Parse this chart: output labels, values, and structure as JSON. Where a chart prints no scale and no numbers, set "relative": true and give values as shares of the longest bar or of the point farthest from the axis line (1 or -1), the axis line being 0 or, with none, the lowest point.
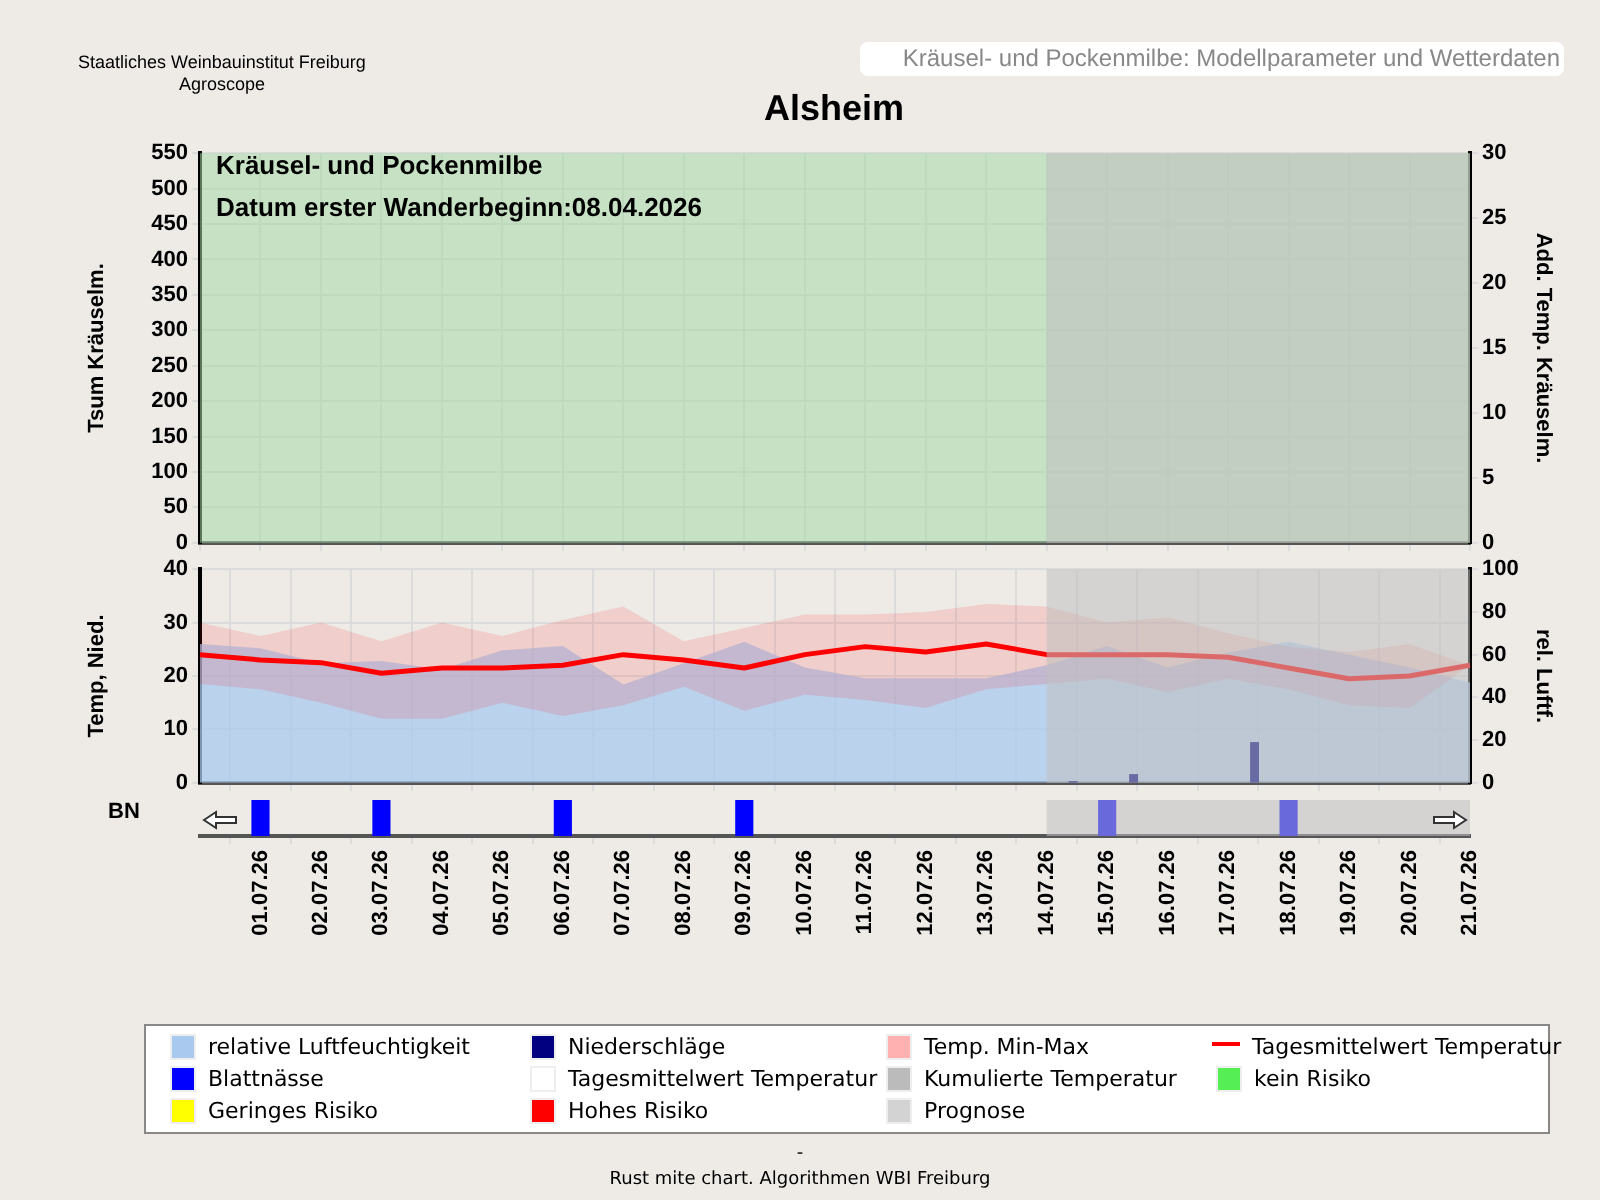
{
  "chart_data": [
    {
      "type": "line",
      "title": "Alsheim",
      "subtitle": "Kräusel- und Pockenmilbe: Modellparameter und Wetterdaten",
      "annotations": [
        "Kräusel- und Pockenmilbe",
        "Datum  erster Wanderbeginn:08.04.2026",
        "Staatliches Weinbauinstitut Freiburg",
        "Agroscope"
      ],
      "categories": [
        null,
        "01.07.26",
        "02.07.26",
        "03.07.26",
        "04.07.26",
        "05.07.26",
        "06.07.26",
        "07.07.26",
        "08.07.26",
        "09.07.26",
        "10.07.26",
        "11.07.26",
        "12.07.26",
        "13.07.26",
        "14.07.26",
        "15.07.26",
        "16.07.26",
        "17.07.26",
        "18.07.26",
        "19.07.26",
        "20.07.26",
        "21.07.26"
      ],
      "ylabel": "Tsum Kräuselm.",
      "y2label": "Add. Temp. Kräuselm.",
      "ylim": [
        0,
        550
      ],
      "yticks": [
        0,
        50,
        100,
        150,
        200,
        250,
        300,
        350,
        400,
        450,
        500,
        550
      ],
      "y2lim": [
        0,
        30
      ],
      "y2ticks": [
        0,
        5,
        10,
        15,
        20,
        25,
        30
      ],
      "bands": [
        {
          "axis": "y",
          "from": 0,
          "to": 550,
          "color": "#a6d8a6"
        },
        {
          "axis": "x",
          "from": "14.07.26",
          "to": "21.07.26",
          "color": "#c0c0c0"
        }
      ],
      "grid": true,
      "tick_labels": "y"
    },
    {
      "type": "line",
      "categories": [
        null,
        "01.07.26",
        "02.07.26",
        "03.07.26",
        "04.07.26",
        "05.07.26",
        "06.07.26",
        "07.07.26",
        "08.07.26",
        "09.07.26",
        "10.07.26",
        "11.07.26",
        "12.07.26",
        "13.07.26",
        "14.07.26",
        "15.07.26",
        "16.07.26",
        "17.07.26",
        "18.07.26",
        "19.07.26",
        "20.07.26",
        "21.07.26"
      ],
      "ylabel": "Temp, Nied.",
      "y2label": "rel. Luftf.",
      "ylim": [
        0,
        40
      ],
      "yticks": [
        0,
        10,
        20,
        30,
        40
      ],
      "y2lim": [
        0,
        100
      ],
      "y2ticks": [
        0,
        20,
        40,
        60,
        80,
        100
      ],
      "series": [
        {
          "name": "relative Luftfeuchtigkeit",
          "type": "area",
          "axis": "y2",
          "color": "#a9c9ef",
          "values": [
            65,
            63,
            56,
            57,
            53,
            62,
            64,
            46,
            56,
            66,
            54,
            49,
            49,
            49,
            55,
            64,
            54,
            61,
            66,
            60,
            54,
            47
          ]
        },
        {
          "name": "Niederschläge",
          "type": "bar",
          "color": "#000080",
          "values": [
            null,
            null,
            null,
            null,
            null,
            null,
            null,
            null,
            null,
            null,
            null,
            null,
            null,
            null,
            0.2,
            1.5,
            null,
            7.5,
            null,
            null,
            null,
            null
          ]
        },
        {
          "name": "Temp. Min-Max",
          "type": "area",
          "color": "#ffb0b0",
          "values": [
            null,
            null,
            null,
            null,
            null,
            null,
            null,
            null,
            null,
            null,
            null,
            null,
            null,
            null,
            null,
            null,
            null,
            null,
            null,
            null,
            null,
            null
          ]
        },
        {
          "name": "Tagesmittelwert Temperatur",
          "type": "line",
          "color": "#ff0000",
          "values": [
            24,
            23,
            22.5,
            20.5,
            21.5,
            21.5,
            22,
            24,
            23,
            21.5,
            24,
            25.5,
            24.5,
            26,
            24,
            24,
            24,
            23.5,
            21.5,
            19.5,
            20,
            22
          ],
          "lower": [
            18.5,
            17.5,
            15,
            12,
            12,
            15,
            12.5,
            14.5,
            18,
            13.5,
            16.5,
            15.5,
            14,
            17.5,
            18.5,
            19.5,
            17,
            19.5,
            17.5,
            14.5,
            14,
            22
          ],
          "upper": [
            30,
            27.5,
            30,
            26.5,
            30,
            27.5,
            30.5,
            33,
            26.5,
            29,
            31.5,
            31.5,
            32,
            33.5,
            33,
            30,
            31,
            28,
            25.5,
            24.5,
            26,
            22
          ]
        },
        {
          "name": "Blattnässe",
          "type": "bar",
          "color": "#0000ff",
          "values": [
            null,
            null,
            null,
            null,
            null,
            null,
            null,
            null,
            null,
            null,
            null,
            null,
            null,
            null,
            null,
            null,
            null,
            null,
            null,
            null,
            null,
            null
          ]
        },
        {
          "name": "Tagesmittelwert Temperatur",
          "type": "bar",
          "color": "#ffffff",
          "values": [
            null,
            null,
            null,
            null,
            null,
            null,
            null,
            null,
            null,
            null,
            null,
            null,
            null,
            null,
            null,
            null,
            null,
            null,
            null,
            null,
            null,
            null
          ]
        },
        {
          "name": "Kumulierte Temperatur",
          "type": "bar",
          "color": "#bbbbbb",
          "values": [
            null,
            null,
            null,
            null,
            null,
            null,
            null,
            null,
            null,
            null,
            null,
            null,
            null,
            null,
            null,
            null,
            null,
            null,
            null,
            null,
            null,
            null
          ]
        },
        {
          "name": "kein Risiko",
          "type": "bar",
          "color": "#55ee55",
          "values": [
            null,
            null,
            null,
            null,
            null,
            null,
            null,
            null,
            null,
            null,
            null,
            null,
            null,
            null,
            null,
            null,
            null,
            null,
            null,
            null,
            null,
            null
          ]
        },
        {
          "name": "Geringes Risiko",
          "type": "bar",
          "color": "#ffff00",
          "values": [
            null,
            null,
            null,
            null,
            null,
            null,
            null,
            null,
            null,
            null,
            null,
            null,
            null,
            null,
            null,
            null,
            null,
            null,
            null,
            null,
            null,
            null
          ]
        },
        {
          "name": "Hohes Risiko",
          "type": "bar",
          "color": "#ff0000",
          "values": [
            null,
            null,
            null,
            null,
            null,
            null,
            null,
            null,
            null,
            null,
            null,
            null,
            null,
            null,
            null,
            null,
            null,
            null,
            null,
            null,
            null,
            null
          ]
        },
        {
          "name": "Prognose",
          "type": "bar",
          "color": "#d3d3d3",
          "values": [
            null,
            null,
            null,
            null,
            null,
            null,
            null,
            null,
            null,
            null,
            null,
            null,
            null,
            null,
            null,
            null,
            null,
            null,
            null,
            null,
            null,
            null
          ]
        }
      ],
      "bands": [
        {
          "axis": "x",
          "from": "14.07.26",
          "to": "21.07.26",
          "color": "#c0c0c0"
        }
      ],
      "grid": true,
      "legend": "bottom",
      "tick_labels": "y"
    },
    {
      "type": "bar",
      "relative": true,
      "ylabel": "BN",
      "categories": [
        null,
        "01.07.26",
        "02.07.26",
        "03.07.26",
        "04.07.26",
        "05.07.26",
        "06.07.26",
        "07.07.26",
        "08.07.26",
        "09.07.26",
        "10.07.26",
        "11.07.26",
        "12.07.26",
        "13.07.26",
        "14.07.26",
        "15.07.26",
        "16.07.26",
        "17.07.26",
        "18.07.26",
        "19.07.26",
        "20.07.26",
        "21.07.26"
      ],
      "values": [
        null,
        1,
        null,
        1,
        null,
        null,
        1,
        null,
        null,
        1,
        null,
        null,
        null,
        null,
        null,
        1,
        null,
        null,
        1,
        null,
        null,
        null
      ],
      "color": "#0000ff",
      "bands": [
        {
          "axis": "x",
          "from": "14.07.26",
          "to": "21.07.26",
          "color": "#c0c0c0"
        }
      ],
      "annotations": [
        "-",
        "Rust mite chart. Algorithmen WBI Freiburg"
      ],
      "tick_labels": "x"
    }
  ]
}
